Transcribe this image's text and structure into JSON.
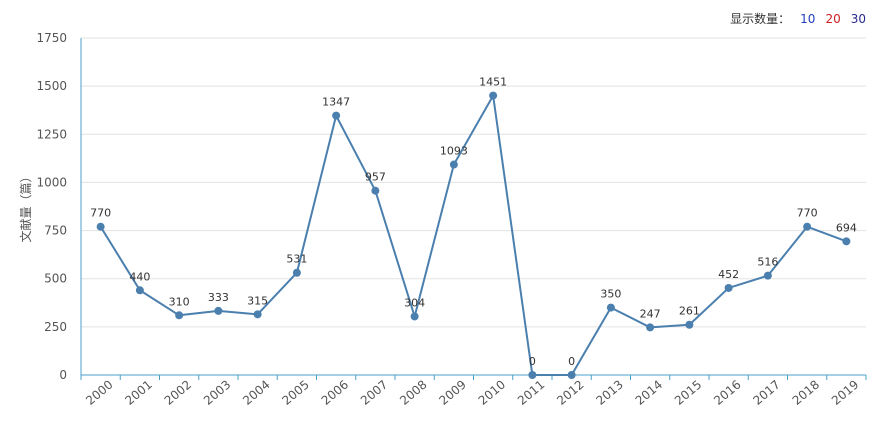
{
  "display_count": {
    "label": "显示数量：",
    "options": [
      {
        "label": "10",
        "color": "#1f3fbf"
      },
      {
        "label": "20",
        "color": "#cc1f1f"
      },
      {
        "label": "30",
        "color": "#2a2a8f"
      }
    ]
  },
  "chart_data": {
    "type": "line",
    "title": "",
    "xlabel": "",
    "ylabel": "文献量（篇）",
    "ylim": [
      0,
      1750
    ],
    "yticks": [
      0,
      250,
      500,
      750,
      1000,
      1250,
      1500,
      1750
    ],
    "grid": true,
    "categories": [
      "2000",
      "2001",
      "2002",
      "2003",
      "2004",
      "2005",
      "2006",
      "2007",
      "2008",
      "2009",
      "2010",
      "2011",
      "2012",
      "2013",
      "2014",
      "2015",
      "2016",
      "2017",
      "2018",
      "2019"
    ],
    "series": [
      {
        "values": [
          770,
          440,
          310,
          333,
          315,
          531,
          1347,
          957,
          304,
          1093,
          1451,
          0,
          0,
          350,
          247,
          261,
          452,
          516,
          770,
          694
        ],
        "color": "#4a7fae"
      }
    ]
  }
}
